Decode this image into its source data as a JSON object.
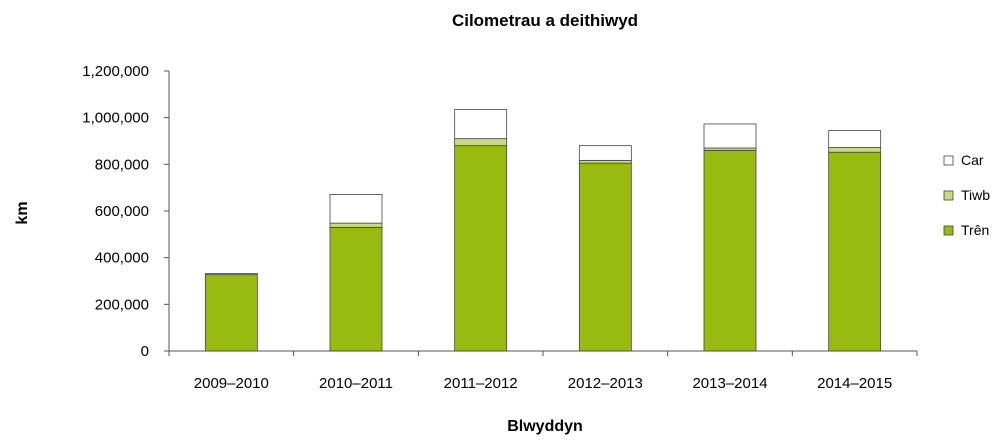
{
  "chart_data": {
    "type": "bar",
    "stacked": true,
    "title": "Cilometrau a deithiwyd",
    "xlabel": "Blwyddyn",
    "ylabel": "km",
    "categories": [
      "2009–2010",
      "2010–2011",
      "2011–2012",
      "2012–2013",
      "2013–2014",
      "2014–2015"
    ],
    "ylim": [
      0,
      1200000
    ],
    "yticks": [
      0,
      200000,
      400000,
      600000,
      800000,
      1000000,
      1200000
    ],
    "ytick_labels": [
      "0",
      "200,000",
      "400,000",
      "600,000",
      "800,000",
      "1,000,000",
      "1,200,000"
    ],
    "grid": false,
    "legend_position": "right",
    "series": [
      {
        "name": "Trên",
        "color": "#99bb11",
        "values": [
          327000,
          530000,
          880000,
          805000,
          860000,
          852000
        ]
      },
      {
        "name": "Tiwb",
        "color": "#c8db82",
        "values": [
          5000,
          18000,
          30000,
          12000,
          10000,
          20000
        ]
      },
      {
        "name": "Car",
        "color": "#ffffff",
        "values": [
          0,
          123000,
          125000,
          63000,
          103000,
          73000
        ]
      }
    ],
    "legend_order": [
      "Car",
      "Tiwb",
      "Trên"
    ]
  }
}
